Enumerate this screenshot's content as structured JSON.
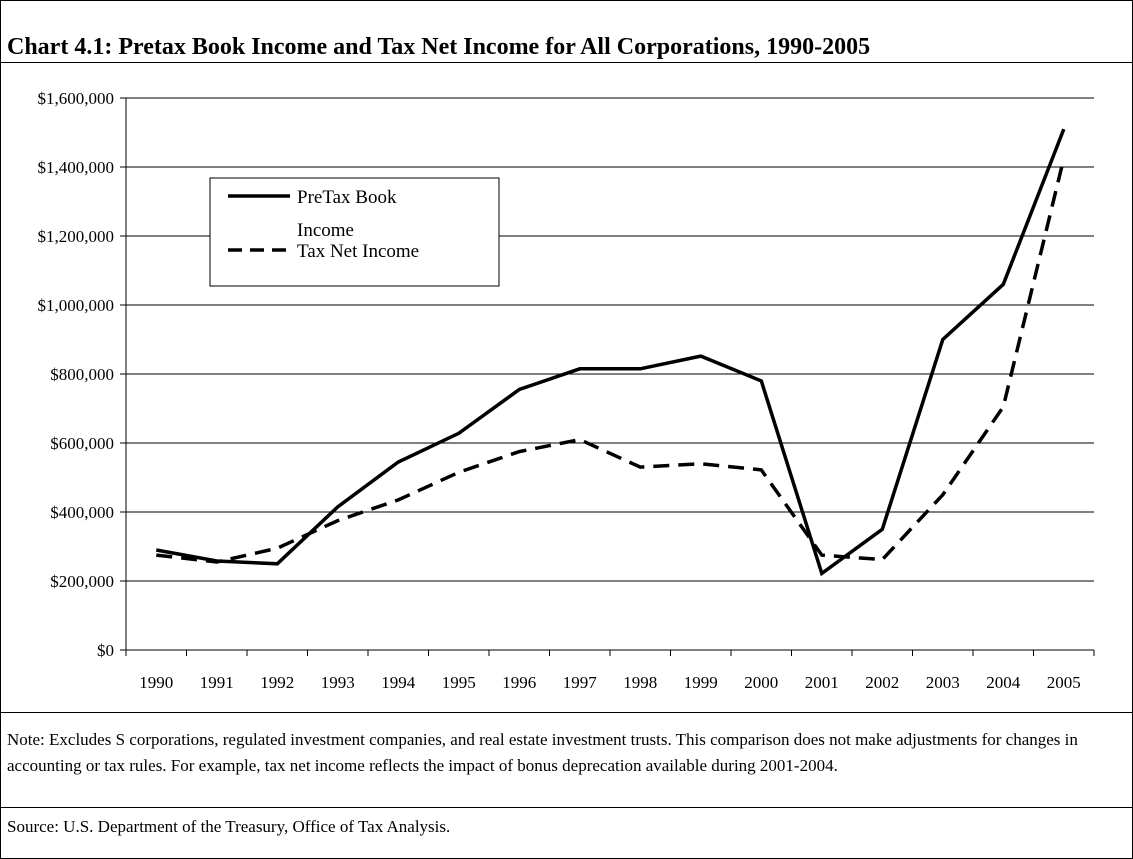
{
  "chart_title": "Chart 4.1:  Pretax Book Income and Tax Net Income for All Corporations, 1990-2005",
  "note": "Note:  Excludes S corporations, regulated investment companies, and real estate investment trusts.  This comparison does not make adjustments for changes in accounting or tax rules.  For example, tax net income reflects the impact of bonus deprecation available during 2001-2004.",
  "source": "Source: U.S. Department of the Treasury, Office of Tax Analysis.",
  "chart_data": {
    "type": "line",
    "title": "Chart 4.1:  Pretax Book Income and Tax Net Income for All Corporations, 1990-2005",
    "x": [
      "1990",
      "1991",
      "1992",
      "1993",
      "1994",
      "1995",
      "1996",
      "1997",
      "1998",
      "1999",
      "2000",
      "2001",
      "2002",
      "2003",
      "2004",
      "2005"
    ],
    "y_ticks": [
      "$0",
      "$200,000",
      "$400,000",
      "$600,000",
      "$800,000",
      "$1,000,000",
      "$1,200,000",
      "$1,400,000",
      "$1,600,000"
    ],
    "ylim": [
      0,
      1600000
    ],
    "grid": true,
    "legend_position": "top-left",
    "series": [
      {
        "name": "PreTax Book Income",
        "style": "solid",
        "values": [
          290000,
          258000,
          250000,
          415000,
          545000,
          628000,
          755000,
          815000,
          815000,
          852000,
          780000,
          222000,
          350000,
          900000,
          1060000,
          1510000
        ]
      },
      {
        "name": "Tax Net Income",
        "style": "dashed",
        "values": [
          275000,
          255000,
          295000,
          375000,
          435000,
          515000,
          575000,
          610000,
          530000,
          540000,
          522000,
          275000,
          262000,
          450000,
          705000,
          1425000
        ]
      }
    ],
    "colors": {
      "line": "#000000",
      "grid": "#000000",
      "background": "#ffffff"
    }
  }
}
